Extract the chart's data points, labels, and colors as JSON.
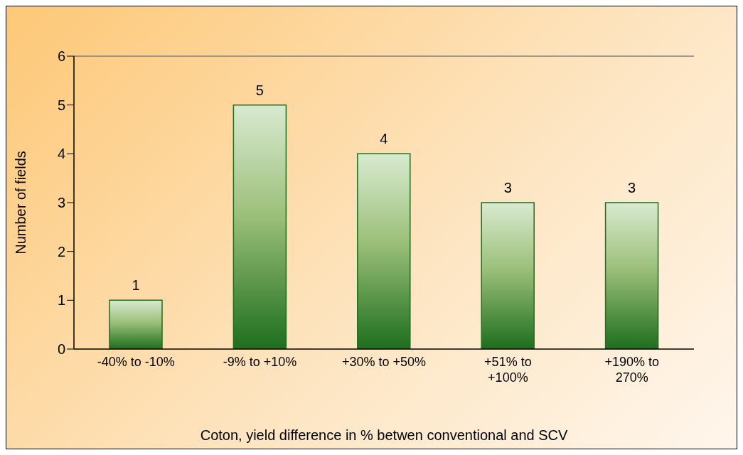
{
  "chart_data": {
    "type": "bar",
    "categories": [
      "-40% to -10%",
      "-9% to +10%",
      "+30% to +50%",
      "+51% to +100%",
      "+190% to 270%"
    ],
    "values": [
      1,
      5,
      4,
      3,
      3
    ],
    "color": "#1e6e1e",
    "ylabel": "Number of fields",
    "xlabel": "Coton, yield difference in % betwen conventional and SCV",
    "ylim": [
      0,
      6
    ],
    "yticks": [
      0,
      1,
      2,
      3,
      4,
      5,
      6
    ],
    "data_labels": true
  }
}
